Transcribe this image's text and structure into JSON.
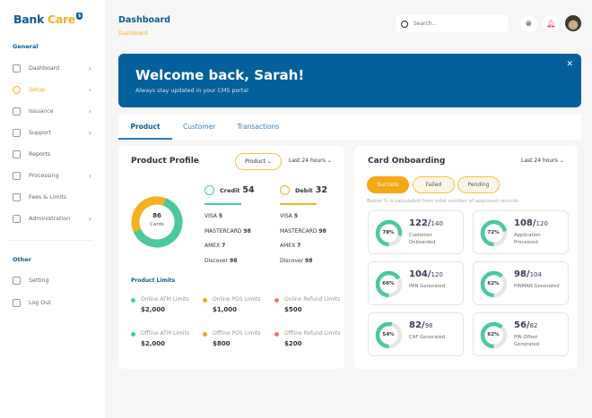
{
  "brand": {
    "part1": "Bank",
    "part2": "Care"
  },
  "sidebar": {
    "general_label": "General",
    "other_label": "Other",
    "items": [
      {
        "label": "Dashboard",
        "icon": "chart-icon",
        "chevron": true
      },
      {
        "label": "Setup",
        "icon": "gear-icon",
        "chevron": true,
        "active": true
      },
      {
        "label": "Issuance",
        "icon": "trend-icon",
        "chevron": true
      },
      {
        "label": "Support",
        "icon": "headset-icon",
        "chevron": true
      },
      {
        "label": "Reports",
        "icon": "document-icon",
        "chevron": false
      },
      {
        "label": "Processing",
        "icon": "refresh-icon",
        "chevron": true
      },
      {
        "label": "Fees & Limits",
        "icon": "dollar-icon",
        "chevron": false
      },
      {
        "label": "Administration",
        "icon": "user-icon",
        "chevron": true
      }
    ],
    "other_items": [
      {
        "label": "Setting",
        "icon": "gear-icon"
      },
      {
        "label": "Log Out",
        "icon": "logout-icon"
      }
    ]
  },
  "header": {
    "title": "Dashboard",
    "breadcrumb": "Dashboard",
    "search_placeholder": "Search..."
  },
  "banner": {
    "title": "Welcome back, Sarah!",
    "subtitle": "Always stay updated in your CMS portal"
  },
  "tabs": [
    {
      "label": "Product",
      "active": true
    },
    {
      "label": "Customer"
    },
    {
      "label": "Transactions"
    }
  ],
  "product_profile": {
    "title": "Product Profile",
    "filter": "Product",
    "range": "Last 24 hours",
    "total": "86",
    "total_label": "Cards",
    "credit": {
      "label": "Credit",
      "count": 54,
      "color": "#4cc99a",
      "brands": [
        {
          "name": "VISA",
          "value": "5"
        },
        {
          "name": "MASTERCARD",
          "value": "98"
        },
        {
          "name": "AMEX",
          "value": "7"
        },
        {
          "name": "Discover",
          "value": "98"
        }
      ]
    },
    "debit": {
      "label": "Debit",
      "count": 32,
      "color": "#f5b120",
      "brands": [
        {
          "name": "VISA",
          "value": "5"
        },
        {
          "name": "MASTERCARD",
          "value": "98"
        },
        {
          "name": "AMEX",
          "value": "7"
        },
        {
          "name": "Discover",
          "value": "98"
        }
      ]
    },
    "limits_title": "Product Limits",
    "limits": [
      {
        "label": "Online ATM Limits",
        "value": "$2,000",
        "color": "#4cc99a"
      },
      {
        "label": "Online POS Limits",
        "value": "$1,000",
        "color": "#f5a912"
      },
      {
        "label": "Online Refund Limits",
        "value": "$500",
        "color": "#f07474"
      },
      {
        "label": "Offline ATM Limits",
        "value": "$2,000",
        "color": "#4cc99a"
      },
      {
        "label": "Offline POS Limits",
        "value": "$800",
        "color": "#f5a912"
      },
      {
        "label": "Offline Refund Limits",
        "value": "$200",
        "color": "#f07474"
      }
    ]
  },
  "card_onboarding": {
    "title": "Card Onboarding",
    "range": "Last 24 hours",
    "statuses": [
      {
        "label": "Success",
        "active": true
      },
      {
        "label": "Failed"
      },
      {
        "label": "Pending"
      }
    ],
    "note": "Below % is calculated from total number of approved records",
    "items": [
      {
        "percent": 78,
        "value": "122",
        "total": "140",
        "label": "Customer Onboarded"
      },
      {
        "percent": 72,
        "value": "108",
        "total": "120",
        "label": "Application Processed"
      },
      {
        "percent": 66,
        "value": "104",
        "total": "120",
        "label": "PAN Generated"
      },
      {
        "percent": 62,
        "value": "98",
        "total": "104",
        "label": "PINMAN Generated"
      },
      {
        "percent": 54,
        "value": "82",
        "total": "98",
        "label": "CAF Generated"
      },
      {
        "percent": 62,
        "value": "56",
        "total": "82",
        "label": "PIN Offset Generated"
      }
    ]
  }
}
